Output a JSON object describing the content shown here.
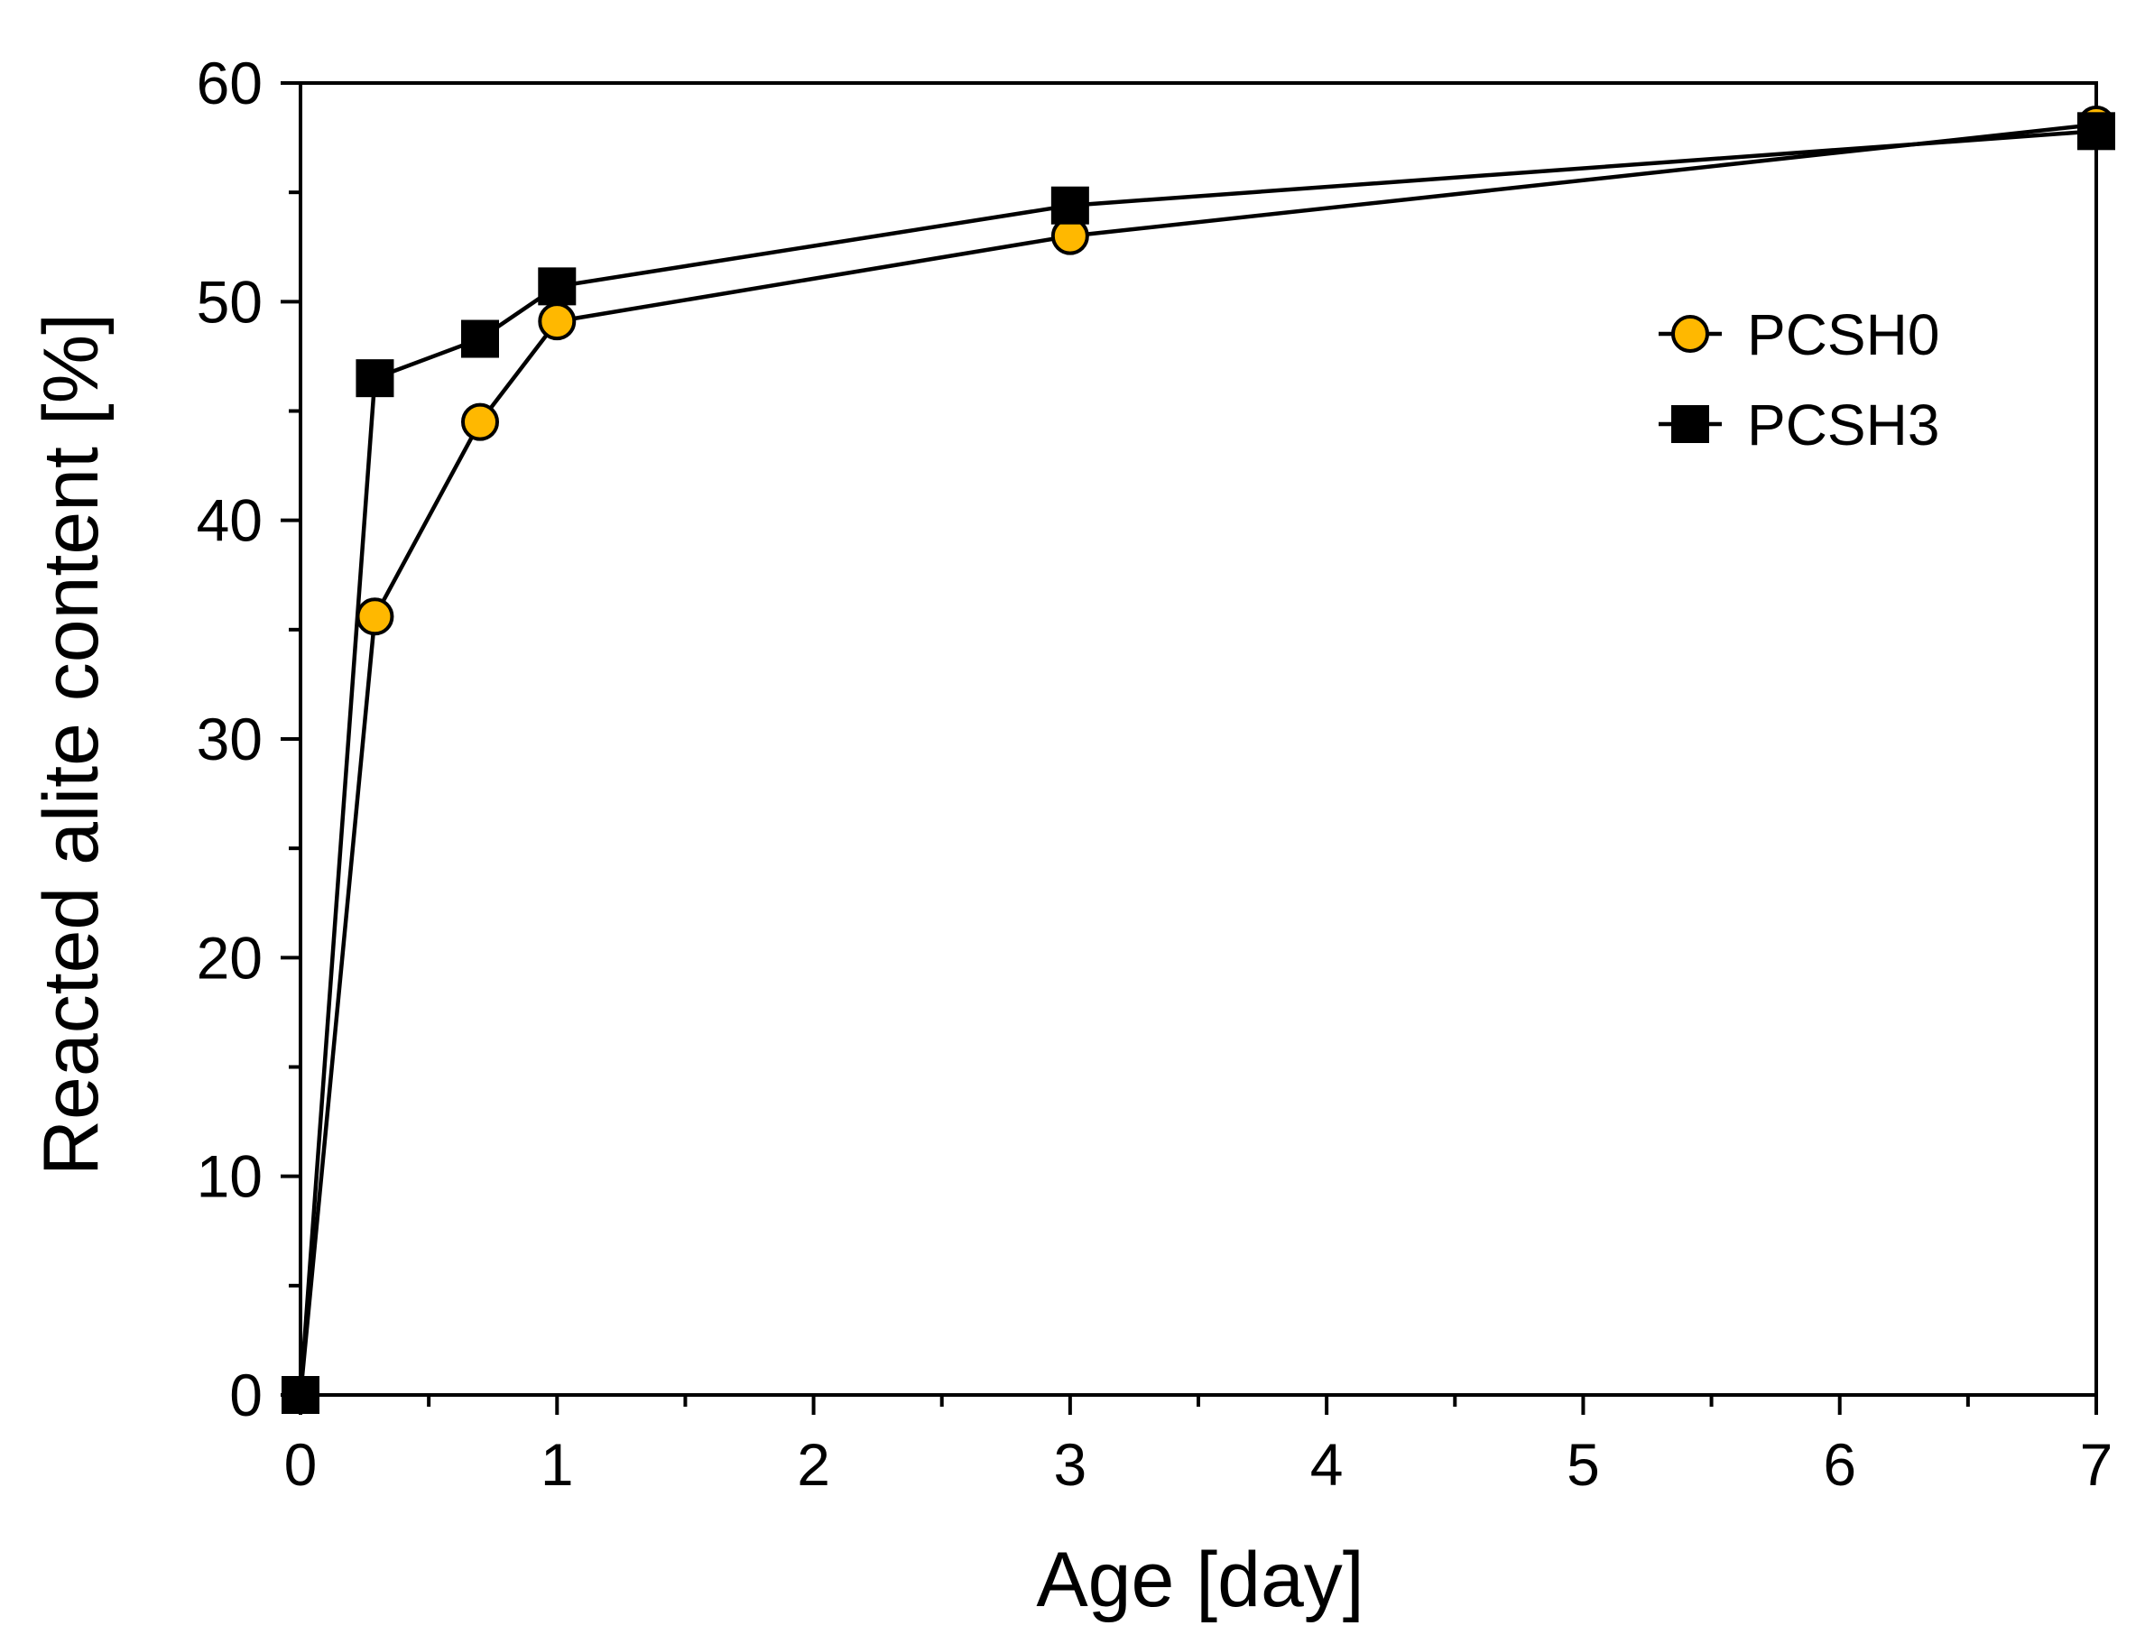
{
  "chart_data": {
    "type": "line",
    "title": "",
    "xlabel": "Age [day]",
    "ylabel": "Reacted alite content [%]",
    "xlim": [
      0,
      7
    ],
    "ylim": [
      0,
      60
    ],
    "xticks": [
      0,
      1,
      2,
      3,
      4,
      5,
      6,
      7
    ],
    "xtick_labels": [
      "0",
      "1",
      "2",
      "3",
      "4",
      "5",
      "6",
      "7"
    ],
    "xminor_step": 0.5,
    "yticks": [
      0,
      10,
      20,
      30,
      40,
      50,
      60
    ],
    "ytick_labels": [
      "0",
      "10",
      "20",
      "30",
      "40",
      "50",
      "60"
    ],
    "yminor_step": 5,
    "grid": false,
    "legend_position": "top-right",
    "series": [
      {
        "name": "PCSH0",
        "marker": "circle",
        "marker_color": "#FFB800",
        "line_color": "#000000",
        "x": [
          0,
          0.29,
          0.7,
          1.0,
          3.0,
          7.0
        ],
        "y": [
          0,
          35.6,
          44.5,
          49.1,
          53.0,
          58.1
        ]
      },
      {
        "name": "PCSH3",
        "marker": "square",
        "marker_color": "#000000",
        "line_color": "#000000",
        "x": [
          0,
          0.29,
          0.7,
          1.0,
          3.0,
          7.0
        ],
        "y": [
          0,
          46.5,
          48.3,
          50.7,
          54.4,
          57.8
        ]
      }
    ]
  }
}
